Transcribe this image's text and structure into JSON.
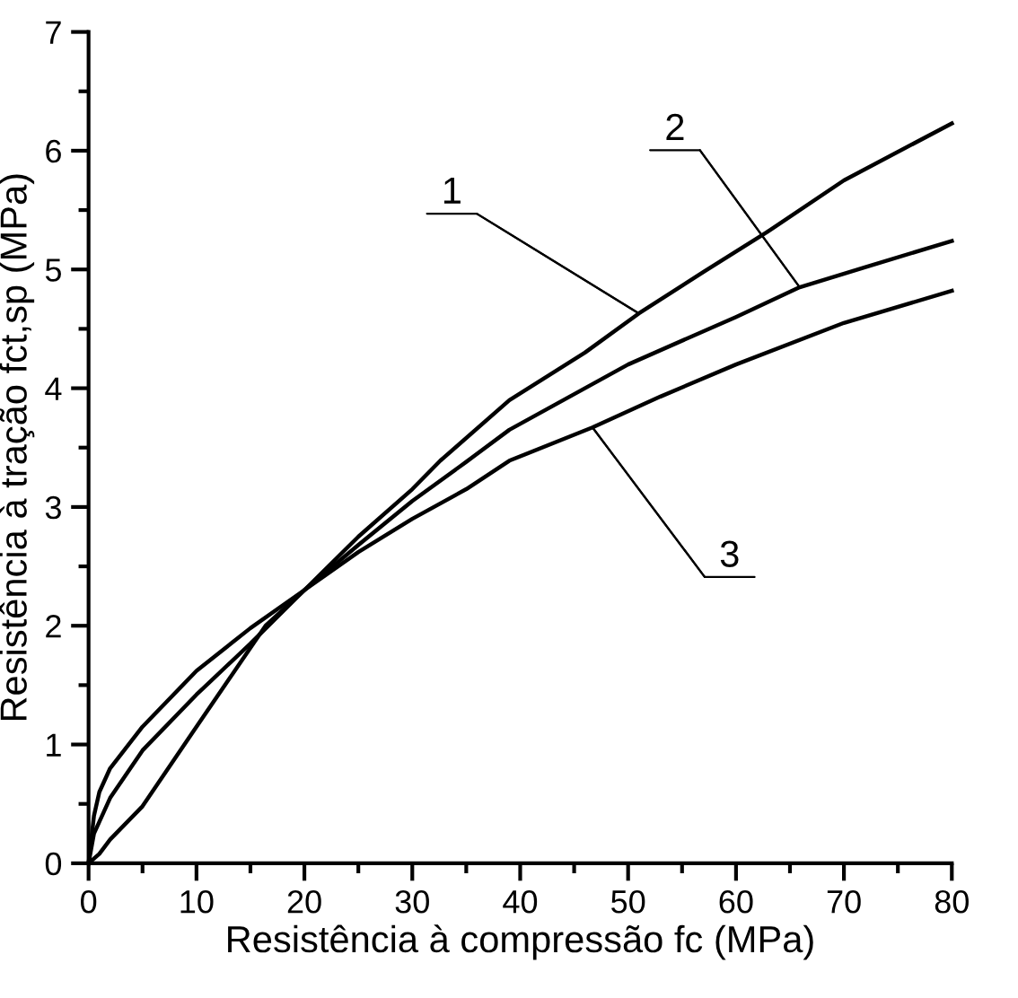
{
  "chart_data": {
    "type": "line",
    "xlabel": "Resistência à compressão fc (MPa)",
    "ylabel": "Resistência à tração fct,sp (MPa)",
    "xlim": [
      0,
      80
    ],
    "ylim": [
      0,
      7
    ],
    "xticks": [
      0,
      10,
      20,
      30,
      40,
      50,
      60,
      70,
      80
    ],
    "yticks": [
      0,
      1,
      2,
      3,
      4,
      5,
      6,
      7
    ],
    "grid": false,
    "legend": false,
    "marker": "none",
    "line_style": "solid",
    "series": [
      {
        "color": "#000000",
        "x": [
          0,
          1,
          2,
          5,
          10,
          16.4,
          20,
          25,
          30,
          32.6,
          39,
          46,
          51,
          57,
          62.8,
          70,
          80
        ],
        "values": [
          0,
          0.08,
          0.2,
          0.48,
          1.15,
          2.0,
          2.3,
          2.75,
          3.15,
          3.39,
          3.9,
          4.3,
          4.63,
          4.98,
          5.31,
          5.75,
          6.23
        ]
      },
      {
        "color": "#000000",
        "x": [
          0,
          0.5,
          1,
          2,
          5,
          10,
          15,
          20,
          25,
          30,
          35,
          39,
          50,
          60,
          65.9,
          72,
          80
        ],
        "values": [
          0,
          0.25,
          0.35,
          0.55,
          0.95,
          1.42,
          1.85,
          2.3,
          2.68,
          3.05,
          3.38,
          3.65,
          4.2,
          4.6,
          4.85,
          5.02,
          5.24
        ]
      },
      {
        "color": "#000000",
        "x": [
          0,
          0.5,
          1,
          2,
          5,
          10,
          15,
          20,
          25,
          30,
          35,
          39,
          46.7,
          53,
          60,
          70,
          80
        ],
        "values": [
          0,
          0.4,
          0.6,
          0.8,
          1.15,
          1.62,
          1.98,
          2.3,
          2.62,
          2.9,
          3.15,
          3.39,
          3.67,
          3.93,
          4.2,
          4.55,
          4.82
        ]
      }
    ],
    "annotations": [
      {
        "text": "1",
        "x": 51,
        "y": 4.63
      },
      {
        "text": "2",
        "x": 65.9,
        "y": 4.85
      },
      {
        "text": "3",
        "x": 46.7,
        "y": 3.67
      }
    ]
  }
}
